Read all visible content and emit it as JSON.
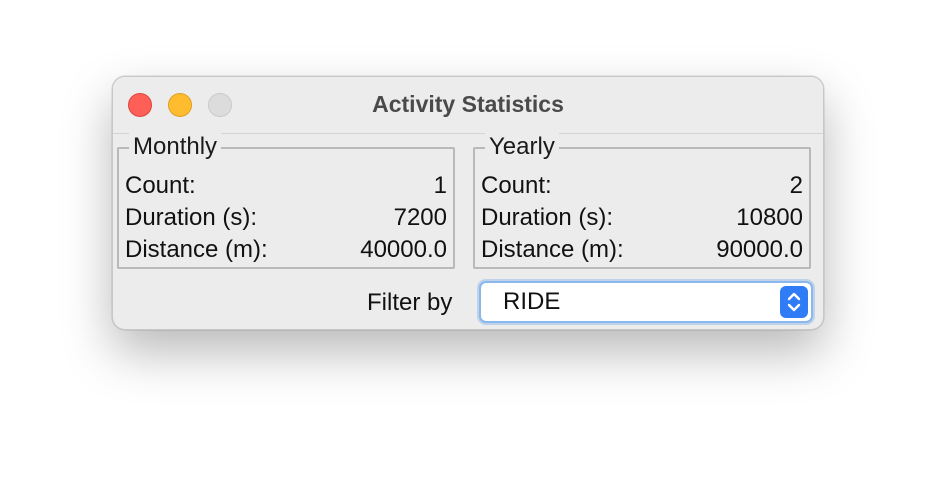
{
  "window": {
    "title": "Activity Statistics"
  },
  "monthly": {
    "legend": "Monthly",
    "rows": [
      {
        "label": "Count:",
        "value": "1"
      },
      {
        "label": "Duration (s):",
        "value": "7200"
      },
      {
        "label": "Distance (m):",
        "value": "40000.0"
      }
    ]
  },
  "yearly": {
    "legend": "Yearly",
    "rows": [
      {
        "label": "Count:",
        "value": "2"
      },
      {
        "label": "Duration (s):",
        "value": "10800"
      },
      {
        "label": "Distance (m):",
        "value": "90000.0"
      }
    ]
  },
  "filter": {
    "label": "Filter by",
    "selected": "RIDE",
    "icon": "up-down-chevron-icon"
  },
  "colors": {
    "close": "#fe5f57",
    "minimize": "#febc2e",
    "maximize_disabled": "#dcdcdc",
    "accent": "#2f7cf6"
  }
}
